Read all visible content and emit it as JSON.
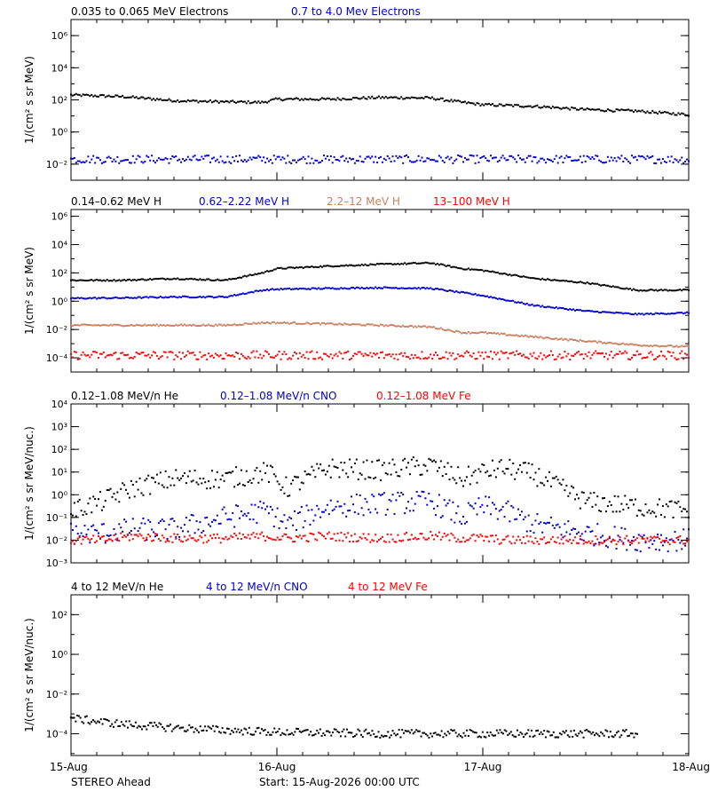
{
  "footer": {
    "observatory": "STEREO Ahead",
    "start": "Start: 15-Aug-2026 00:00 UTC"
  },
  "chart_data": [
    {
      "type": "scatter",
      "title": "",
      "ylabel": "1/(cm² s sr MeV)",
      "yscale": "log",
      "ylim": [
        0.001,
        10000000
      ],
      "yticks": [
        {
          "value": 0.01,
          "label": "10⁻²"
        },
        {
          "value": 1,
          "label": "10⁰"
        },
        {
          "value": 100,
          "label": "10²"
        },
        {
          "value": 10000,
          "label": "10⁴"
        },
        {
          "value": 1000000,
          "label": "10⁶"
        }
      ],
      "x": [
        0,
        0.25,
        0.5,
        0.75,
        0.93,
        1.0,
        1.25,
        1.5,
        1.75,
        1.9,
        2.0,
        2.25,
        2.5,
        2.75,
        3.0
      ],
      "series": [
        {
          "name": "0.035 to 0.065 MeV Electrons",
          "color": "#000000",
          "scatter": 0.08,
          "values": [
            200,
            160,
            90,
            75,
            70,
            110,
            110,
            140,
            130,
            70,
            50,
            40,
            25,
            20,
            12
          ]
        },
        {
          "name": "0.7 to 4.0 Mev Electrons",
          "color": "#0000cc",
          "scatter": 0.25,
          "values": [
            0.02,
            0.02,
            0.02,
            0.02,
            0.02,
            0.02,
            0.02,
            0.02,
            0.02,
            0.02,
            0.02,
            0.02,
            0.02,
            0.02,
            0.02
          ]
        }
      ]
    },
    {
      "type": "scatter",
      "title": "",
      "ylabel": "1/(cm² s sr MeV)",
      "yscale": "log",
      "ylim": [
        1e-05,
        3000000
      ],
      "yticks": [
        {
          "value": 0.0001,
          "label": "10⁻⁴"
        },
        {
          "value": 0.01,
          "label": "10⁻²"
        },
        {
          "value": 1,
          "label": "10⁰"
        },
        {
          "value": 100,
          "label": "10²"
        },
        {
          "value": 10000,
          "label": "10⁴"
        },
        {
          "value": 1000000,
          "label": "10⁶"
        }
      ],
      "x": [
        0,
        0.25,
        0.5,
        0.75,
        0.93,
        1.0,
        1.25,
        1.5,
        1.75,
        1.9,
        2.0,
        2.25,
        2.5,
        2.75,
        3.0
      ],
      "series": [
        {
          "name": "0.14–0.62 MeV H",
          "color": "#000000",
          "scatter": 0.05,
          "values": [
            30,
            30,
            40,
            30,
            100,
            200,
            300,
            400,
            500,
            200,
            150,
            40,
            20,
            6,
            6
          ]
        },
        {
          "name": "0.62–2.22 MeV H",
          "color": "#0000cc",
          "scatter": 0.05,
          "values": [
            1.6,
            1.7,
            2,
            2,
            6,
            7,
            8,
            9,
            8,
            4,
            2.5,
            0.5,
            0.2,
            0.12,
            0.15
          ]
        },
        {
          "name": "2.2–12 MeV H",
          "color": "#c88060",
          "scatter": 0.06,
          "values": [
            0.02,
            0.02,
            0.02,
            0.02,
            0.03,
            0.03,
            0.025,
            0.02,
            0.015,
            0.006,
            0.006,
            0.003,
            0.0015,
            0.0008,
            0.0006
          ]
        },
        {
          "name": "13–100 MeV H",
          "color": "#ff0000",
          "scatter": 0.3,
          "values": [
            0.00015,
            0.00015,
            0.00015,
            0.00015,
            0.00015,
            0.00015,
            0.00015,
            0.00015,
            0.00015,
            0.00015,
            0.00015,
            0.00015,
            0.00015,
            0.00015,
            0.00015
          ]
        }
      ]
    },
    {
      "type": "scatter",
      "title": "",
      "ylabel": "1/(cm² s sr MeV/nuc.)",
      "yscale": "log",
      "ylim": [
        0.001,
        10000
      ],
      "yticks": [
        {
          "value": 0.001,
          "label": "10⁻³"
        },
        {
          "value": 0.01,
          "label": "10⁻²"
        },
        {
          "value": 0.1,
          "label": "10⁻¹"
        },
        {
          "value": 1,
          "label": "10⁰"
        },
        {
          "value": 10,
          "label": "10¹"
        },
        {
          "value": 100,
          "label": "10²"
        },
        {
          "value": 1000,
          "label": "10³"
        },
        {
          "value": 10000,
          "label": "10⁴"
        }
      ],
      "x": [
        0,
        0.15,
        0.3,
        0.5,
        0.75,
        0.95,
        1.05,
        1.25,
        1.5,
        1.75,
        1.9,
        2.0,
        2.1,
        2.25,
        2.5,
        2.75,
        3.0
      ],
      "series": [
        {
          "name": "0.12–1.08 MeV/n He",
          "color": "#000000",
          "scatter": 0.45,
          "values": [
            0.2,
            0.5,
            2,
            5,
            5,
            10,
            2,
            15,
            12,
            20,
            5,
            10,
            15,
            8,
            0.5,
            0.3,
            0.2
          ]
        },
        {
          "name": "0.12–1.08 MeV/n CNO",
          "color": "#0000cc",
          "scatter": 0.5,
          "values": [
            0.02,
            0.02,
            0.03,
            0.03,
            0.1,
            0.2,
            0.05,
            0.3,
            0.4,
            0.5,
            0.1,
            0.3,
            0.2,
            0.05,
            0.02,
            0.01,
            0.01
          ]
        },
        {
          "name": "0.12–1.08 MeV Fe",
          "color": "#ff0000",
          "scatter": 0.2,
          "values": [
            0.01,
            0.01,
            0.015,
            0.012,
            0.012,
            0.015,
            0.012,
            0.015,
            0.012,
            0.015,
            0.012,
            0.012,
            0.01,
            0.01,
            0.01,
            0.01,
            0.01
          ]
        }
      ]
    },
    {
      "type": "scatter",
      "title": "",
      "ylabel": "1/(cm² s sr MeV/nuc.)",
      "yscale": "log",
      "ylim": [
        8e-06,
        1000
      ],
      "yticks": [
        {
          "value": 0.0001,
          "label": "10⁻⁴"
        },
        {
          "value": 0.01,
          "label": "10⁻²"
        },
        {
          "value": 1,
          "label": "10⁰"
        },
        {
          "value": 100,
          "label": "10²"
        }
      ],
      "x": [
        0,
        0.25,
        0.5,
        0.75,
        1.0,
        1.25,
        1.5,
        1.75,
        2.0,
        2.25,
        2.5,
        2.75
      ],
      "series": [
        {
          "name": "4 to 12 MeV/n He",
          "color": "#000000",
          "scatter": 0.2,
          "values": [
            0.0006,
            0.0003,
            0.0002,
            0.00015,
            0.00012,
            0.00011,
            0.0001,
            0.0001,
            0.0001,
            0.0001,
            0.0001,
            0.0001
          ]
        },
        {
          "name": "4 to 12 MeV/n CNO",
          "color": "#0000cc",
          "scatter": 0,
          "values": [
            null,
            null,
            null,
            null,
            null,
            null,
            null,
            null,
            null,
            null,
            null,
            null
          ]
        },
        {
          "name": "4 to 12 MeV Fe",
          "color": "#ff0000",
          "scatter": 0,
          "values": [
            null,
            null,
            null,
            null,
            null,
            null,
            null,
            null,
            null,
            null,
            null,
            null
          ]
        }
      ]
    }
  ],
  "xaxis": {
    "range": [
      0,
      3
    ],
    "ticks": [
      {
        "value": 0,
        "label": "15-Aug"
      },
      {
        "value": 1,
        "label": "16-Aug"
      },
      {
        "value": 2,
        "label": "17-Aug"
      },
      {
        "value": 3,
        "label": "18-Aug"
      }
    ]
  }
}
